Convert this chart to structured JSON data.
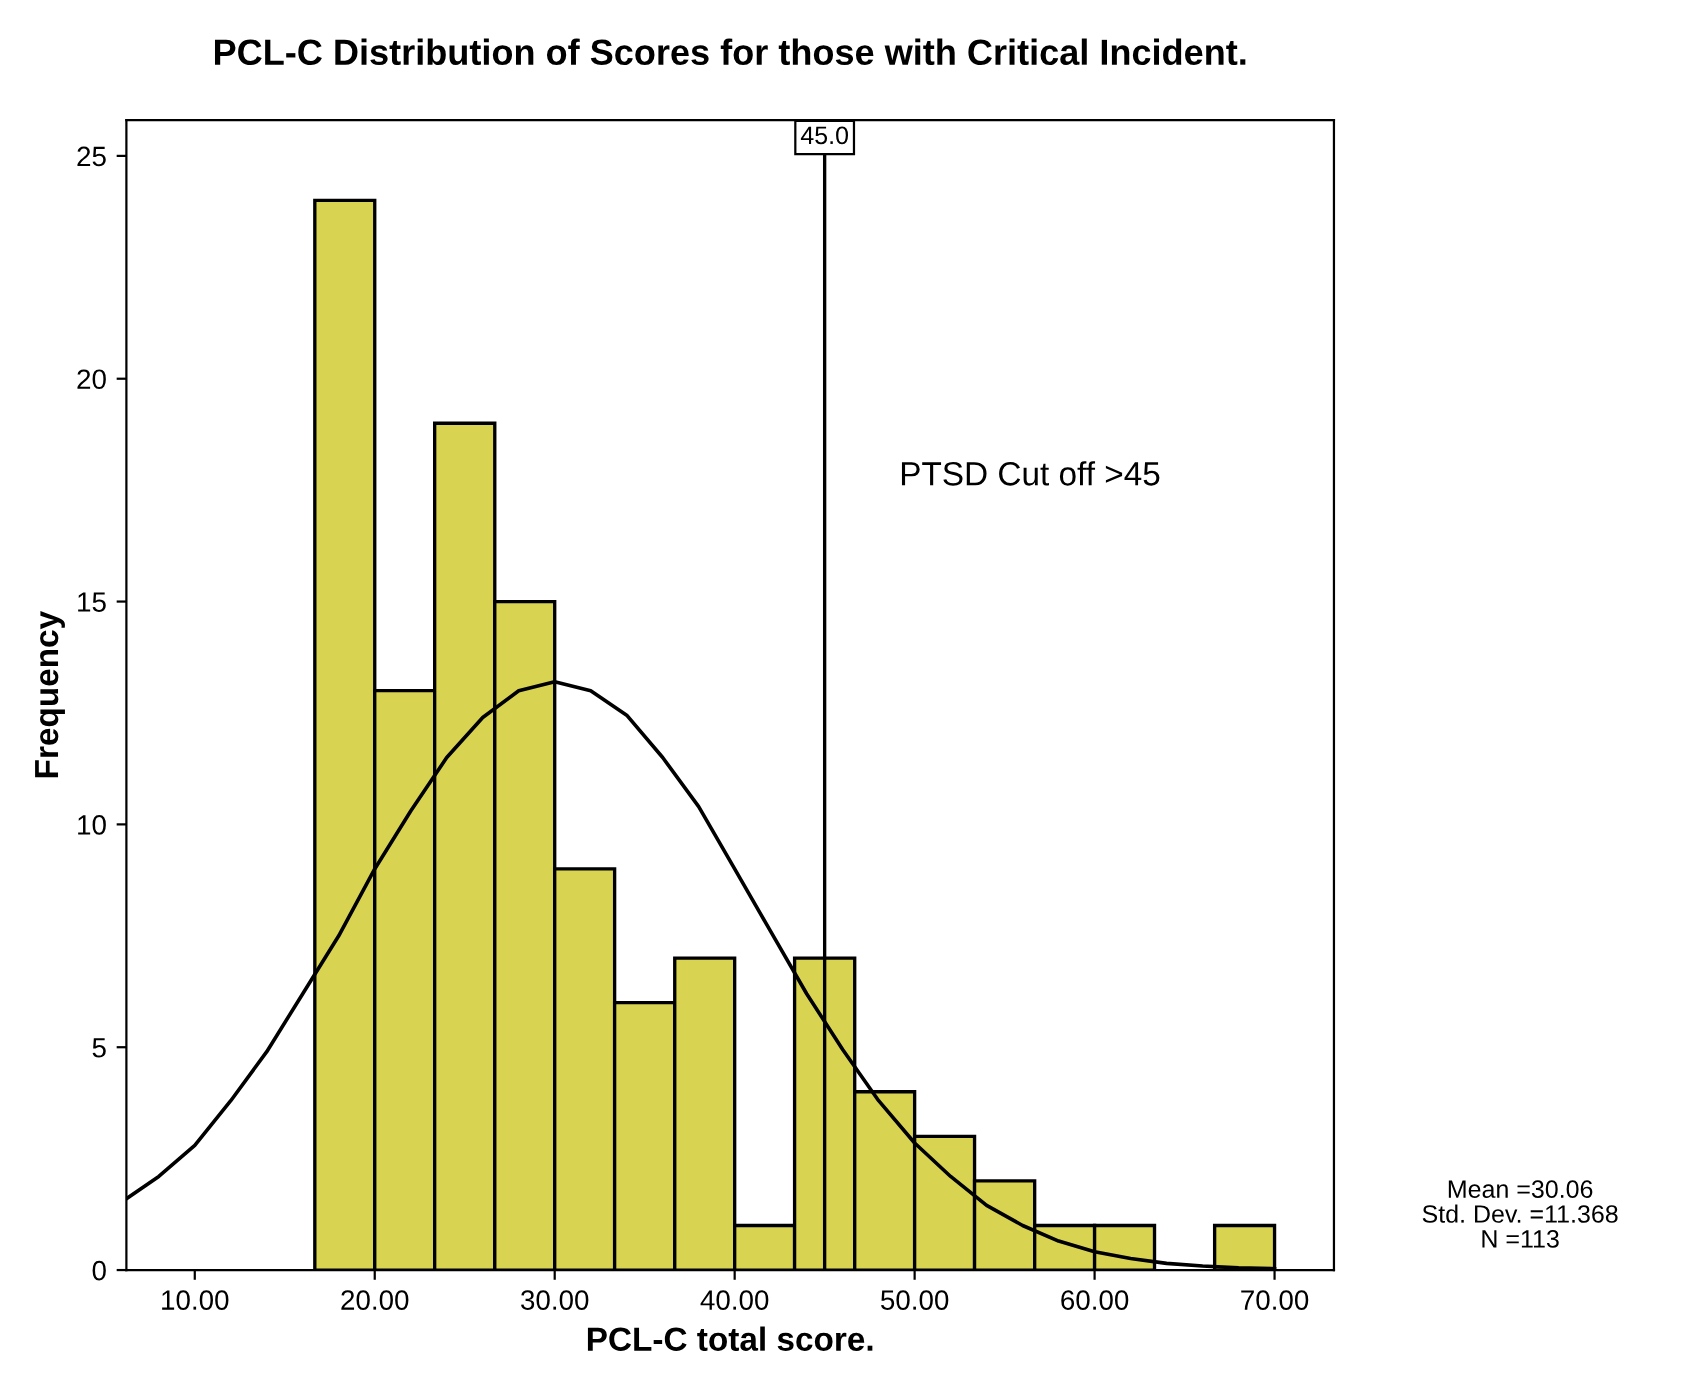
{
  "chart_data": {
    "type": "histogram",
    "title": "PCL-C Distribution of Scores for those with Critical Incident.",
    "xlabel": "PCL-C total score.",
    "ylabel": "Frequency",
    "bins": [
      16.67,
      20,
      23.33,
      26.67,
      30,
      33.33,
      36.67,
      40,
      43.33,
      46.67,
      50,
      53.33,
      56.67,
      60,
      63.33,
      66.67,
      70
    ],
    "values": [
      24,
      13,
      19,
      15,
      9,
      6,
      7,
      1,
      7,
      4,
      3,
      2,
      1,
      1,
      0,
      1
    ],
    "color": "#d9d352",
    "series": [
      {
        "type": "line",
        "color": "#000000",
        "x": [
          6.2,
          8,
          10,
          12,
          14,
          16,
          18,
          20,
          22,
          24,
          26,
          28,
          30,
          32,
          34,
          36,
          38,
          40,
          42,
          44,
          46,
          48,
          50,
          52,
          54,
          56,
          58,
          60,
          62,
          64,
          66,
          68,
          70
        ],
        "values": [
          1.6,
          2.1,
          2.8,
          3.8,
          4.9,
          6.2,
          7.5,
          9.0,
          10.3,
          11.5,
          12.4,
          13.0,
          13.2,
          13.0,
          12.45,
          11.5,
          10.4,
          9.0,
          7.6,
          6.2,
          4.95,
          3.8,
          2.85,
          2.1,
          1.45,
          1.0,
          0.65,
          0.41,
          0.26,
          0.15,
          0.09,
          0.05,
          0.03
        ]
      }
    ],
    "xlim": [
      6.2,
      73.3
    ],
    "ylim": [
      0,
      25.8
    ],
    "xticks": [
      {
        "value": 10,
        "label": "10.00"
      },
      {
        "value": 20,
        "label": "20.00"
      },
      {
        "value": 30,
        "label": "30.00"
      },
      {
        "value": 40,
        "label": "40.00"
      },
      {
        "value": 50,
        "label": "50.00"
      },
      {
        "value": 60,
        "label": "60.00"
      },
      {
        "value": 70,
        "label": "70.00"
      }
    ],
    "yticks": [
      0,
      5,
      10,
      15,
      20,
      25
    ],
    "ref_lines": [
      {
        "axis": "x",
        "value": 45,
        "label": "45.0",
        "color": "#000000"
      }
    ],
    "annotations": [
      "PTSD Cut off >45",
      "Mean =30.06",
      "Std. Dev. =11.368",
      "N =113"
    ],
    "grid": false
  }
}
